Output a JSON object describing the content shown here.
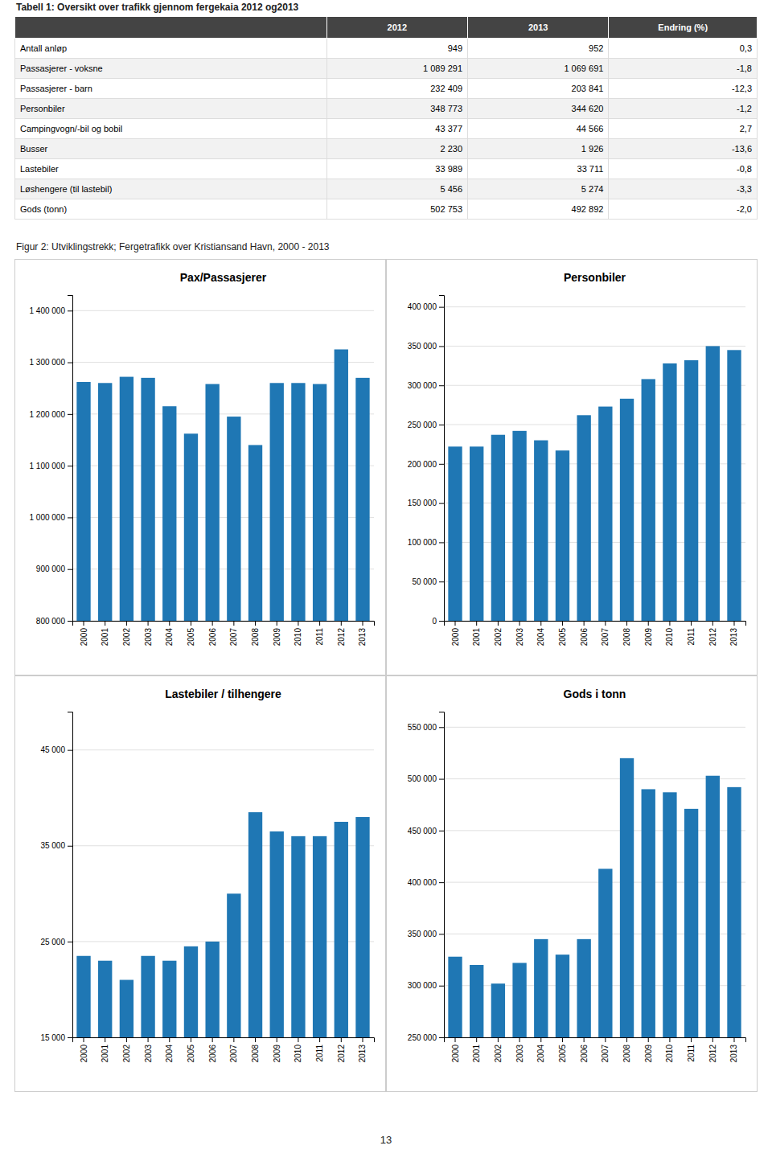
{
  "table": {
    "title": "Tabell 1: Oversikt over trafikk gjennom fergekaia 2012 og2013",
    "headers": [
      "2012",
      "2013",
      "Endring (%)"
    ],
    "rows": [
      [
        "Antall anløp",
        "949",
        "952",
        "0,3"
      ],
      [
        "Passasjerer - voksne",
        "1 089 291",
        "1 069 691",
        "-1,8"
      ],
      [
        "Passasjerer - barn",
        "232 409",
        "203 841",
        "-12,3"
      ],
      [
        "Personbiler",
        "348 773",
        "344 620",
        "-1,2"
      ],
      [
        "Campingvogn/-bil og bobil",
        "43 377",
        "44 566",
        "2,7"
      ],
      [
        "Busser",
        "2 230",
        "1 926",
        "-13,6"
      ],
      [
        "Lastebiler",
        "33 989",
        "33 711",
        "-0,8"
      ],
      [
        "Løshengere (til lastebil)",
        "5 456",
        "5 274",
        "-3,3"
      ],
      [
        "Gods (tonn)",
        "502 753",
        "492 892",
        "-2,0"
      ]
    ]
  },
  "figure_title": "Figur 2: Utviklingstrekk; Fergetrafikk over Kristiansand Havn, 2000 - 2013",
  "page_number": "13",
  "chart_data": [
    {
      "type": "bar",
      "title": "Pax/Passasjerer",
      "categories": [
        "2000",
        "2001",
        "2002",
        "2003",
        "2004",
        "2005",
        "2006",
        "2007",
        "2008",
        "2009",
        "2010",
        "2011",
        "2012",
        "2013"
      ],
      "values": [
        1262000,
        1260000,
        1272000,
        1270000,
        1215000,
        1162000,
        1258000,
        1195000,
        1140000,
        1260000,
        1260000,
        1258000,
        1325000,
        1270000
      ],
      "ylim": [
        800000,
        1430000
      ],
      "yticks": [
        {
          "value": 800000,
          "label": "800 000"
        },
        {
          "value": 900000,
          "label": "900 000"
        },
        {
          "value": 1000000,
          "label": "1 000 000"
        },
        {
          "value": 1100000,
          "label": "1 100 000"
        },
        {
          "value": 1200000,
          "label": "1 200 000"
        },
        {
          "value": 1300000,
          "label": "1 300 000"
        },
        {
          "value": 1400000,
          "label": "1 400 000"
        }
      ],
      "grid": true
    },
    {
      "type": "bar",
      "title": "Personbiler",
      "categories": [
        "2000",
        "2001",
        "2002",
        "2003",
        "2004",
        "2005",
        "2006",
        "2007",
        "2008",
        "2009",
        "2010",
        "2011",
        "2012",
        "2013"
      ],
      "values": [
        222000,
        222000,
        237000,
        242000,
        230000,
        217000,
        262000,
        273000,
        283000,
        308000,
        328000,
        332000,
        350000,
        345000
      ],
      "ylim": [
        0,
        415000
      ],
      "yticks": [
        0,
        {
          "value": 50000,
          "label": "50 000"
        },
        {
          "value": 100000,
          "label": "100 000"
        },
        {
          "value": 150000,
          "label": "150 000"
        },
        {
          "value": 200000,
          "label": "200 000"
        },
        {
          "value": 250000,
          "label": "250 000"
        },
        {
          "value": 300000,
          "label": "300 000"
        },
        {
          "value": 350000,
          "label": "350 000"
        },
        {
          "value": 400000,
          "label": "400 000"
        }
      ],
      "grid": true
    },
    {
      "type": "bar",
      "title": "Lastebiler / tilhengere",
      "categories": [
        "2000",
        "2001",
        "2002",
        "2003",
        "2004",
        "2005",
        "2006",
        "2007",
        "2008",
        "2009",
        "2010",
        "2011",
        "2012",
        "2013"
      ],
      "values": [
        23500,
        23000,
        21000,
        23500,
        23000,
        24500,
        25000,
        30000,
        38500,
        36500,
        36000,
        36000,
        37500,
        38000
      ],
      "ylim": [
        15000,
        49000
      ],
      "yticks": [
        {
          "value": 15000,
          "label": "15 000"
        },
        {
          "value": 25000,
          "label": "25 000"
        },
        {
          "value": 35000,
          "label": "35 000"
        },
        {
          "value": 45000,
          "label": "45 000"
        }
      ],
      "grid": true
    },
    {
      "type": "bar",
      "title": "Gods i tonn",
      "categories": [
        "2000",
        "2001",
        "2002",
        "2003",
        "2004",
        "2005",
        "2006",
        "2007",
        "2008",
        "2009",
        "2010",
        "2011",
        "2012",
        "2013"
      ],
      "values": [
        328000,
        320000,
        302000,
        322000,
        345000,
        330000,
        345000,
        413000,
        520000,
        490000,
        487000,
        471000,
        503000,
        492000
      ],
      "ylim": [
        250000,
        565000
      ],
      "yticks": [
        {
          "value": 250000,
          "label": "250 000"
        },
        {
          "value": 300000,
          "label": "300 000"
        },
        {
          "value": 350000,
          "label": "350 000"
        },
        {
          "value": 400000,
          "label": "400 000"
        },
        {
          "value": 450000,
          "label": "450 000"
        },
        {
          "value": 500000,
          "label": "500 000"
        },
        {
          "value": 550000,
          "label": "550 000"
        }
      ],
      "grid": true
    }
  ]
}
